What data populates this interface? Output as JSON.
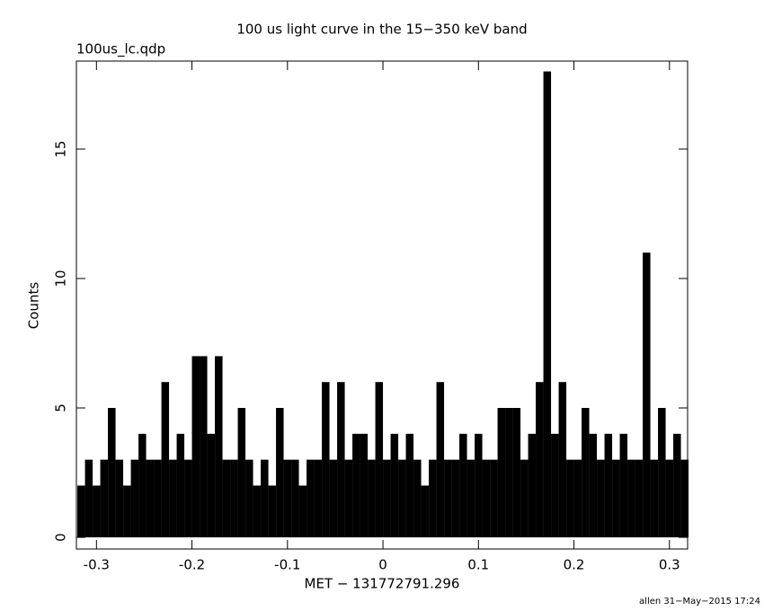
{
  "chart_data": {
    "type": "histogram",
    "title": "100 us light curve in the 15−350 keV band",
    "subtitle": "100us_lc.qdp",
    "x_label": "MET − 131772791.296",
    "y_label": "Counts",
    "footer": "allen 31−May−2015 17:24",
    "color": "#000000",
    "bin_width": 0.008,
    "x": [
      -0.32,
      -0.312,
      -0.304,
      -0.296,
      -0.288,
      -0.28,
      -0.272,
      -0.264,
      -0.256,
      -0.248,
      -0.24,
      -0.232,
      -0.224,
      -0.216,
      -0.208,
      -0.2,
      -0.192,
      -0.184,
      -0.176,
      -0.168,
      -0.16,
      -0.152,
      -0.144,
      -0.136,
      -0.128,
      -0.12,
      -0.112,
      -0.104,
      -0.096,
      -0.088,
      -0.08,
      -0.072,
      -0.064,
      -0.056,
      -0.048,
      -0.04,
      -0.032,
      -0.024,
      -0.016,
      -0.008,
      0,
      0.008,
      0.016,
      0.024,
      0.032,
      0.04,
      0.048,
      0.056,
      0.064,
      0.072,
      0.08,
      0.088,
      0.096,
      0.104,
      0.112,
      0.12,
      0.128,
      0.136,
      0.144,
      0.152,
      0.16,
      0.168,
      0.176,
      0.184,
      0.192,
      0.2,
      0.208,
      0.216,
      0.224,
      0.232,
      0.24,
      0.248,
      0.256,
      0.264,
      0.272,
      0.28,
      0.288,
      0.296,
      0.304,
      0.312
    ],
    "values": [
      2,
      3,
      2,
      3,
      5,
      3,
      2,
      3,
      4,
      3,
      3,
      6,
      3,
      4,
      3,
      7,
      7,
      4,
      7,
      3,
      3,
      5,
      3,
      2,
      3,
      2,
      5,
      3,
      3,
      2,
      3,
      3,
      6,
      3,
      6,
      3,
      4,
      4,
      3,
      6,
      3,
      4,
      3,
      4,
      3,
      2,
      3,
      6,
      3,
      3,
      4,
      3,
      4,
      3,
      3,
      5,
      5,
      5,
      3,
      4,
      6,
      18,
      4,
      6,
      3,
      3,
      5,
      4,
      3,
      4,
      3,
      4,
      3,
      3,
      11,
      3,
      5,
      3,
      4,
      3
    ],
    "xlim": [
      -0.321,
      0.319
    ],
    "ylim": [
      -0.45,
      18.4
    ],
    "xticks": [
      -0.3,
      -0.2,
      -0.1,
      0,
      0.1,
      0.2,
      0.3
    ],
    "yticks": [
      0,
      5,
      10,
      15
    ]
  }
}
